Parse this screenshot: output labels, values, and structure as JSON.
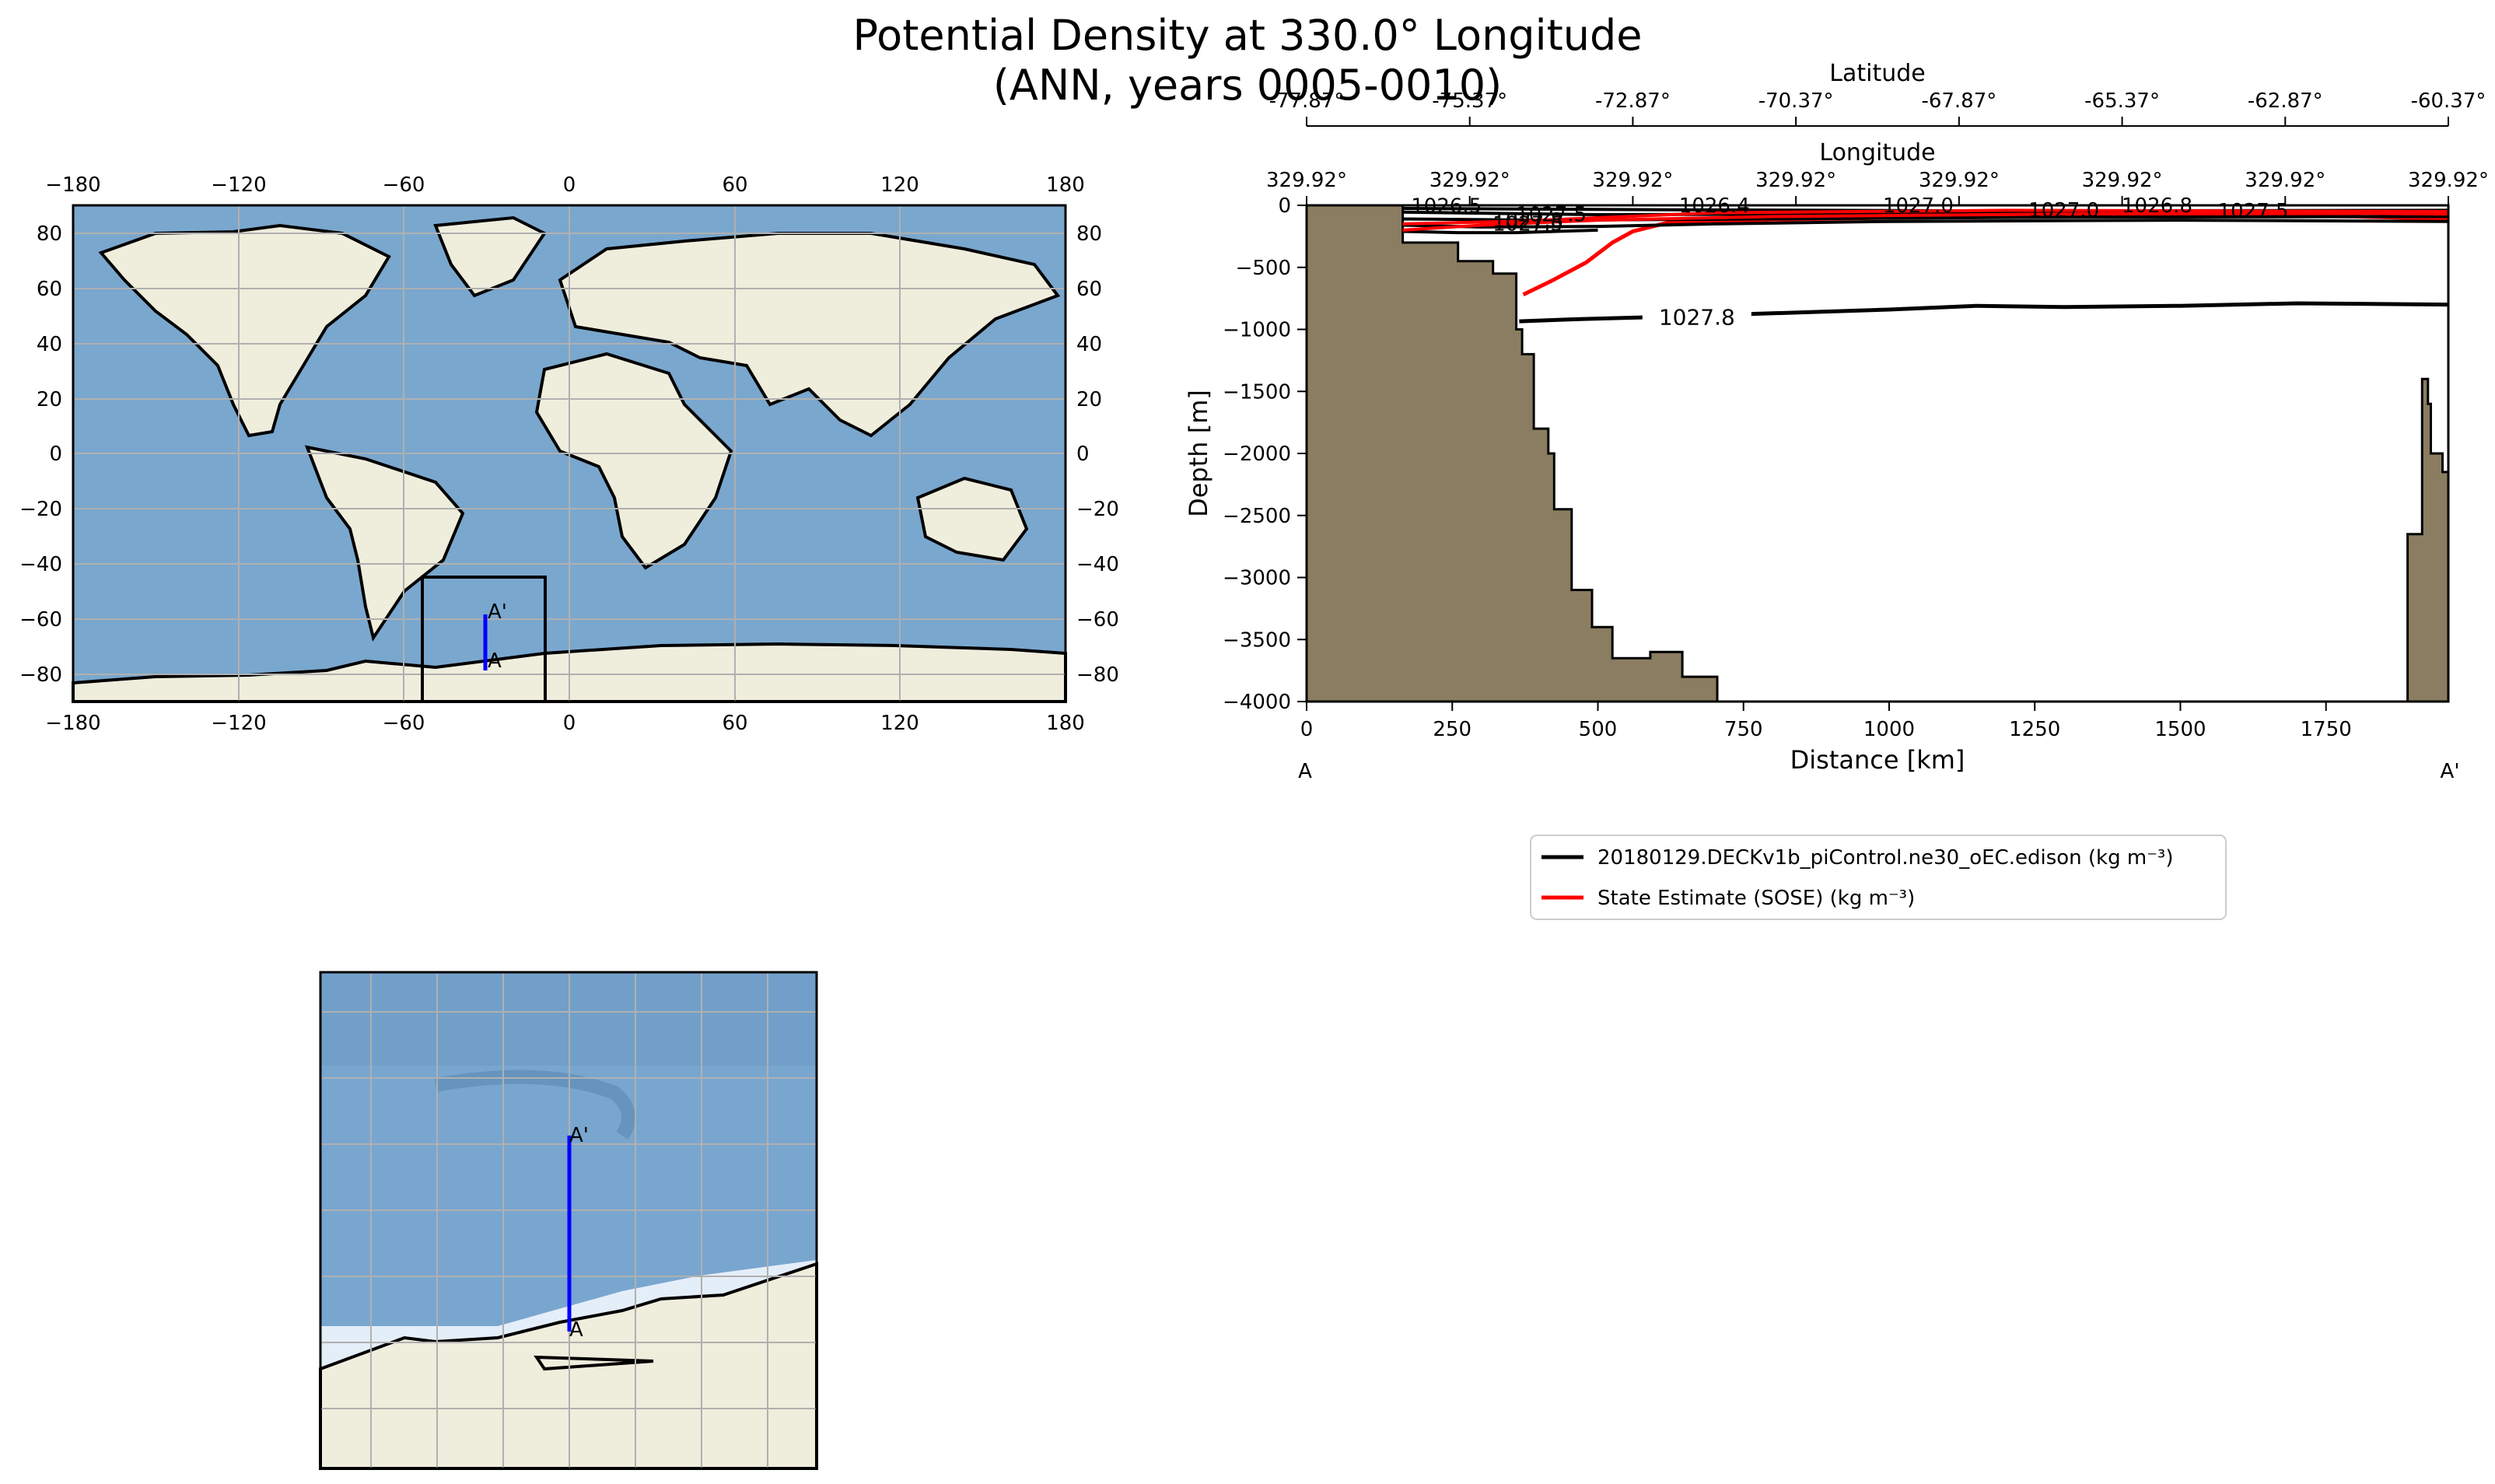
{
  "figure": {
    "title_line1": "Potential Density at 330.0° Longitude",
    "title_line2": "(ANN, years 0005-0010)"
  },
  "world_map": {
    "lon_ticks": [
      "−180",
      "−120",
      "−60",
      "0",
      "60",
      "120",
      "180"
    ],
    "lat_ticks": [
      "80",
      "60",
      "40",
      "20",
      "0",
      "−20",
      "−40",
      "−60",
      "−80"
    ],
    "point_A": "A",
    "point_A_prime": "A'",
    "colors": {
      "ocean": "#7eabd1",
      "land": "#efeddc",
      "transect": "#0000ff",
      "grid": "#b0b0b0"
    }
  },
  "inset_map": {
    "point_A": "A",
    "point_A_prime": "A'",
    "colors": {
      "ocean": "#79a6cf",
      "land": "#efeddc",
      "ice": "#e4eef9"
    }
  },
  "chart_data": {
    "type": "line",
    "title": "",
    "xlabel": "Distance [km]",
    "ylabel": "Depth [m]",
    "xlim": [
      0,
      1960
    ],
    "ylim": [
      -4000,
      0
    ],
    "x_ticks": [
      0,
      250,
      500,
      750,
      1000,
      1250,
      1500,
      1750
    ],
    "y_ticks": [
      0,
      -500,
      -1000,
      -1500,
      -2000,
      -2500,
      -3000,
      -3500,
      -4000
    ],
    "x_tick_labels": [
      "0",
      "250",
      "500",
      "750",
      "1000",
      "1250",
      "1500",
      "1750"
    ],
    "y_tick_labels": [
      "0",
      "−500",
      "−1000",
      "−1500",
      "−2000",
      "−2500",
      "−3000",
      "−3500",
      "−4000"
    ],
    "top_axis_latitude": {
      "label": "Latitude",
      "ticks": [
        "-77.87°",
        "-75.37°",
        "-72.87°",
        "-70.37°",
        "-67.87°",
        "-65.37°",
        "-62.87°",
        "-60.37°"
      ]
    },
    "top_axis_longitude": {
      "label": "Longitude",
      "ticks": [
        "329.92°",
        "329.92°",
        "329.92°",
        "329.92°",
        "329.92°",
        "329.92°",
        "329.92°",
        "329.92°"
      ]
    },
    "endpoint_labels": [
      "A",
      "A'"
    ],
    "bathymetry": {
      "left": [
        [
          0,
          0
        ],
        [
          165,
          0
        ],
        [
          165,
          -300
        ],
        [
          260,
          -300
        ],
        [
          260,
          -450
        ],
        [
          320,
          -450
        ],
        [
          320,
          -550
        ],
        [
          360,
          -550
        ],
        [
          360,
          -1000
        ],
        [
          370,
          -1000
        ],
        [
          370,
          -1200
        ],
        [
          390,
          -1200
        ],
        [
          390,
          -1800
        ],
        [
          415,
          -1800
        ],
        [
          415,
          -2000
        ],
        [
          425,
          -2000
        ],
        [
          425,
          -2450
        ],
        [
          455,
          -2450
        ],
        [
          455,
          -3100
        ],
        [
          490,
          -3100
        ],
        [
          490,
          -3400
        ],
        [
          525,
          -3400
        ],
        [
          525,
          -3650
        ],
        [
          590,
          -3650
        ],
        [
          590,
          -3600
        ],
        [
          645,
          -3600
        ],
        [
          645,
          -3800
        ],
        [
          705,
          -3800
        ],
        [
          705,
          -4000
        ],
        [
          0,
          -4000
        ]
      ],
      "right": [
        [
          1960,
          -4000
        ],
        [
          1890,
          -4000
        ],
        [
          1890,
          -2650
        ],
        [
          1915,
          -2650
        ],
        [
          1915,
          -1400
        ],
        [
          1925,
          -1400
        ],
        [
          1925,
          -1600
        ],
        [
          1930,
          -1600
        ],
        [
          1930,
          -2000
        ],
        [
          1950,
          -2000
        ],
        [
          1950,
          -2150
        ],
        [
          1960,
          -2150
        ]
      ]
    },
    "series": [
      {
        "name": "20180129.DECKv1b_piControl.ne30_oEC.edison (kg m⁻³)",
        "color": "#000000",
        "contour_label": "1027.8",
        "points": [
          [
            365,
            -935
          ],
          [
            450,
            -920
          ],
          [
            600,
            -900
          ],
          [
            800,
            -870
          ],
          [
            1000,
            -840
          ],
          [
            1150,
            -810
          ],
          [
            1300,
            -820
          ],
          [
            1500,
            -810
          ],
          [
            1700,
            -790
          ],
          [
            1960,
            -800
          ]
        ]
      },
      {
        "name": "State Estimate (SOSE) (kg m⁻³)",
        "color": "#ff0000",
        "points": [
          [
            372,
            -720
          ],
          [
            420,
            -610
          ],
          [
            480,
            -460
          ],
          [
            525,
            -300
          ],
          [
            560,
            -210
          ],
          [
            620,
            -140
          ],
          [
            800,
            -115
          ],
          [
            1000,
            -100
          ],
          [
            1300,
            -90
          ],
          [
            1600,
            -80
          ],
          [
            1800,
            -90
          ],
          [
            1960,
            -110
          ]
        ]
      }
    ],
    "shallow_contour_labels": [
      {
        "text": "1026.5",
        "series": "model"
      },
      {
        "text": "1027.5",
        "series": "model"
      },
      {
        "text": "1027.8",
        "series": "model"
      },
      {
        "text": "1026.4",
        "series": "model"
      },
      {
        "text": "1027.0",
        "series": "model"
      },
      {
        "text": "1026.8",
        "series": "model"
      },
      {
        "text": "1027.5",
        "series": "obs"
      },
      {
        "text": "1027.0",
        "series": "obs"
      },
      {
        "text": "1027.5",
        "series": "obs"
      }
    ],
    "legend": {
      "placement": "below-plot",
      "entries": [
        "20180129.DECKv1b_piControl.ne30_oEC.edison (kg m⁻³)",
        "State Estimate (SOSE) (kg m⁻³)"
      ]
    },
    "colors": {
      "terrain": "#8b7d61",
      "model": "#000000",
      "obs": "#ff0000"
    }
  }
}
